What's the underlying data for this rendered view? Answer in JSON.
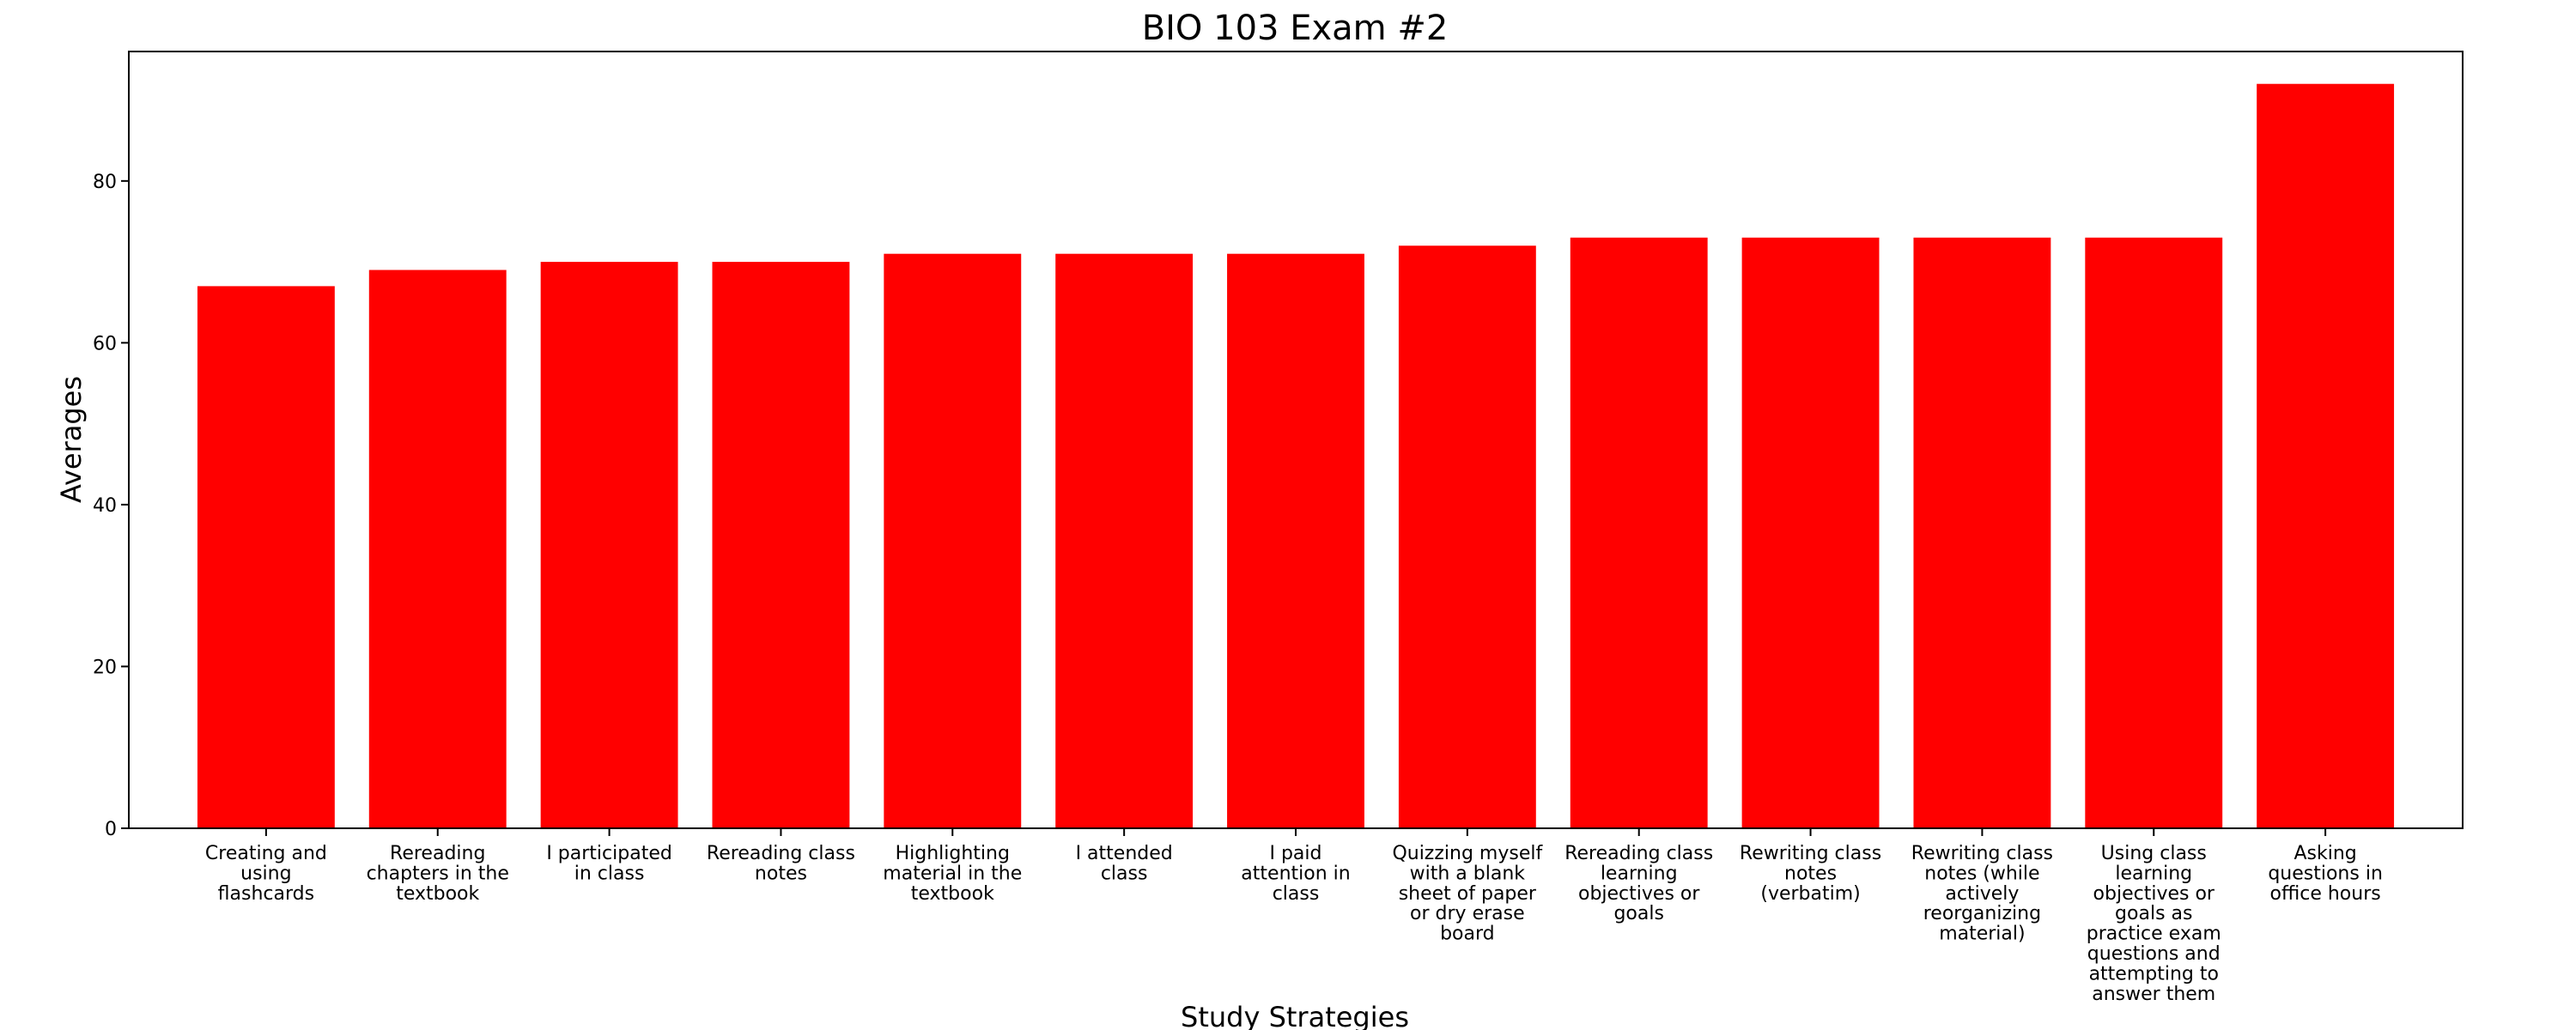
{
  "chart_data": {
    "type": "bar",
    "title": "BIO 103 Exam #2",
    "xlabel": "Study Strategies",
    "ylabel": "Averages",
    "ylim": [
      0,
      96
    ],
    "yticks": [
      0,
      20,
      40,
      60,
      80
    ],
    "grid": false,
    "color": "#ff0000",
    "categories": [
      [
        "Creating and",
        "using",
        "flashcards"
      ],
      [
        "Rereading",
        "chapters in the",
        "textbook"
      ],
      [
        "I participated",
        "in class"
      ],
      [
        "Rereading class",
        "notes"
      ],
      [
        "Highlighting",
        "material in the",
        "textbook"
      ],
      [
        "I attended",
        "class"
      ],
      [
        "I paid",
        "attention in",
        "class"
      ],
      [
        "Quizzing myself",
        "with a blank",
        "sheet of paper",
        "or dry erase",
        "board"
      ],
      [
        "Rereading class",
        "learning",
        "objectives or",
        "goals"
      ],
      [
        "Rewriting class",
        "notes",
        "(verbatim)"
      ],
      [
        "Rewriting class",
        "notes (while",
        "actively",
        "reorganizing",
        "material)"
      ],
      [
        "Using class",
        "learning",
        "objectives or",
        "goals as",
        "practice exam",
        "questions and",
        "attempting to",
        "answer them"
      ],
      [
        "Asking",
        "questions in",
        "office hours"
      ]
    ],
    "values": [
      67,
      69,
      70,
      70,
      71,
      71,
      71,
      72,
      73,
      73,
      73,
      73,
      92
    ]
  }
}
